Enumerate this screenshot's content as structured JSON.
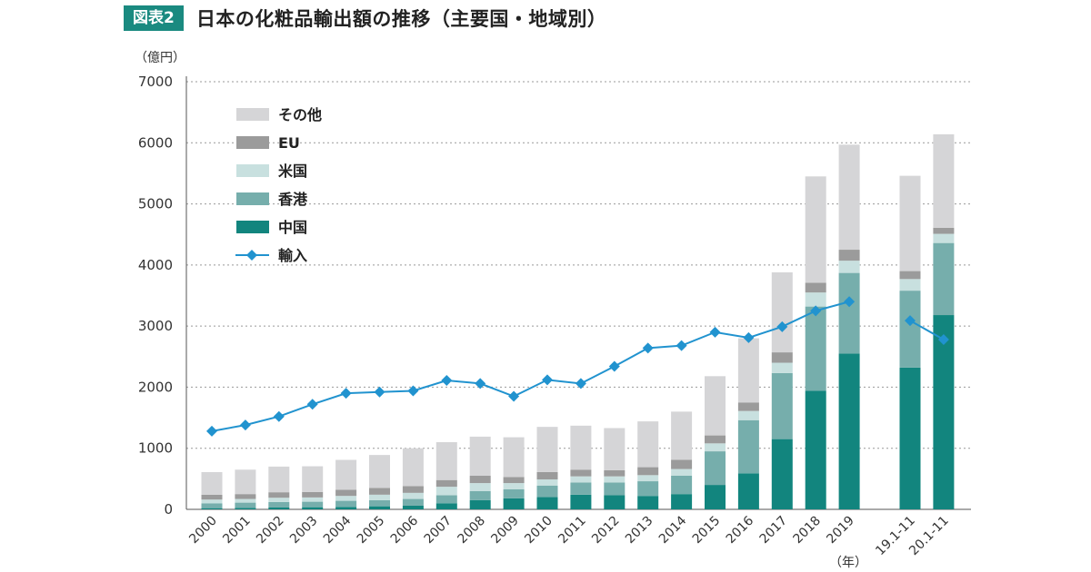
{
  "header": {
    "badge": "図表2",
    "title": "日本の化粧品輸出額の推移（主要国・地域別）"
  },
  "colors": {
    "china": "#12857e",
    "hongkong": "#76aeac",
    "usa": "#c8e0df",
    "eu": "#9b9b9b",
    "other": "#d5d5d7",
    "import": "#2193cf",
    "grid": "#999999"
  },
  "chart_data": {
    "type": "bar",
    "stacked": true,
    "y_unit_label": "（億円）",
    "x_unit_label": "（年）",
    "ylim": [
      0,
      7000
    ],
    "yticks": [
      "0",
      "1000",
      "2000",
      "3000",
      "4000",
      "5000",
      "6000",
      "7000"
    ],
    "grid": "horizontal-dotted",
    "legend_position": "top-left",
    "categories": [
      "2000",
      "2001",
      "2002",
      "2003",
      "2004",
      "2005",
      "2006",
      "2007",
      "2008",
      "2009",
      "2010",
      "2011",
      "2012",
      "2013",
      "2014",
      "2015",
      "2016",
      "2017",
      "2018",
      "2019",
      "19.1-11",
      "20.1-11"
    ],
    "gap_before_index": 20,
    "series": [
      {
        "name": "中国",
        "key": "china",
        "values": [
          20,
          25,
          30,
          35,
          40,
          50,
          60,
          100,
          150,
          180,
          200,
          240,
          230,
          220,
          250,
          400,
          590,
          1150,
          1940,
          2550,
          2320,
          3180
        ]
      },
      {
        "name": "香港",
        "key": "hongkong",
        "values": [
          80,
          85,
          90,
          90,
          100,
          100,
          110,
          130,
          150,
          150,
          190,
          200,
          210,
          240,
          300,
          550,
          870,
          1080,
          1380,
          1320,
          1260,
          1180
        ]
      },
      {
        "name": "米国",
        "key": "usa",
        "values": [
          60,
          60,
          70,
          70,
          80,
          90,
          100,
          140,
          130,
          100,
          100,
          100,
          100,
          100,
          110,
          130,
          150,
          170,
          230,
          200,
          190,
          150
        ]
      },
      {
        "name": "EU",
        "key": "eu",
        "values": [
          80,
          80,
          90,
          90,
          100,
          110,
          110,
          110,
          120,
          100,
          120,
          110,
          100,
          130,
          150,
          130,
          140,
          170,
          160,
          180,
          130,
          100
        ]
      },
      {
        "name": "その他",
        "key": "other",
        "values": [
          370,
          400,
          420,
          420,
          490,
          540,
          620,
          620,
          640,
          650,
          740,
          720,
          690,
          750,
          790,
          970,
          1050,
          1310,
          1740,
          1720,
          1560,
          1530
        ]
      }
    ],
    "line_series": {
      "name": "輸入",
      "key": "import",
      "values": [
        1280,
        1380,
        1520,
        1720,
        1900,
        1920,
        1940,
        2110,
        2060,
        1850,
        2120,
        2060,
        2340,
        2640,
        2680,
        2900,
        2810,
        2990,
        3250,
        3400,
        3090,
        2780
      ]
    },
    "legend_order": [
      "その他",
      "EU",
      "米国",
      "香港",
      "中国",
      "輸入"
    ]
  }
}
